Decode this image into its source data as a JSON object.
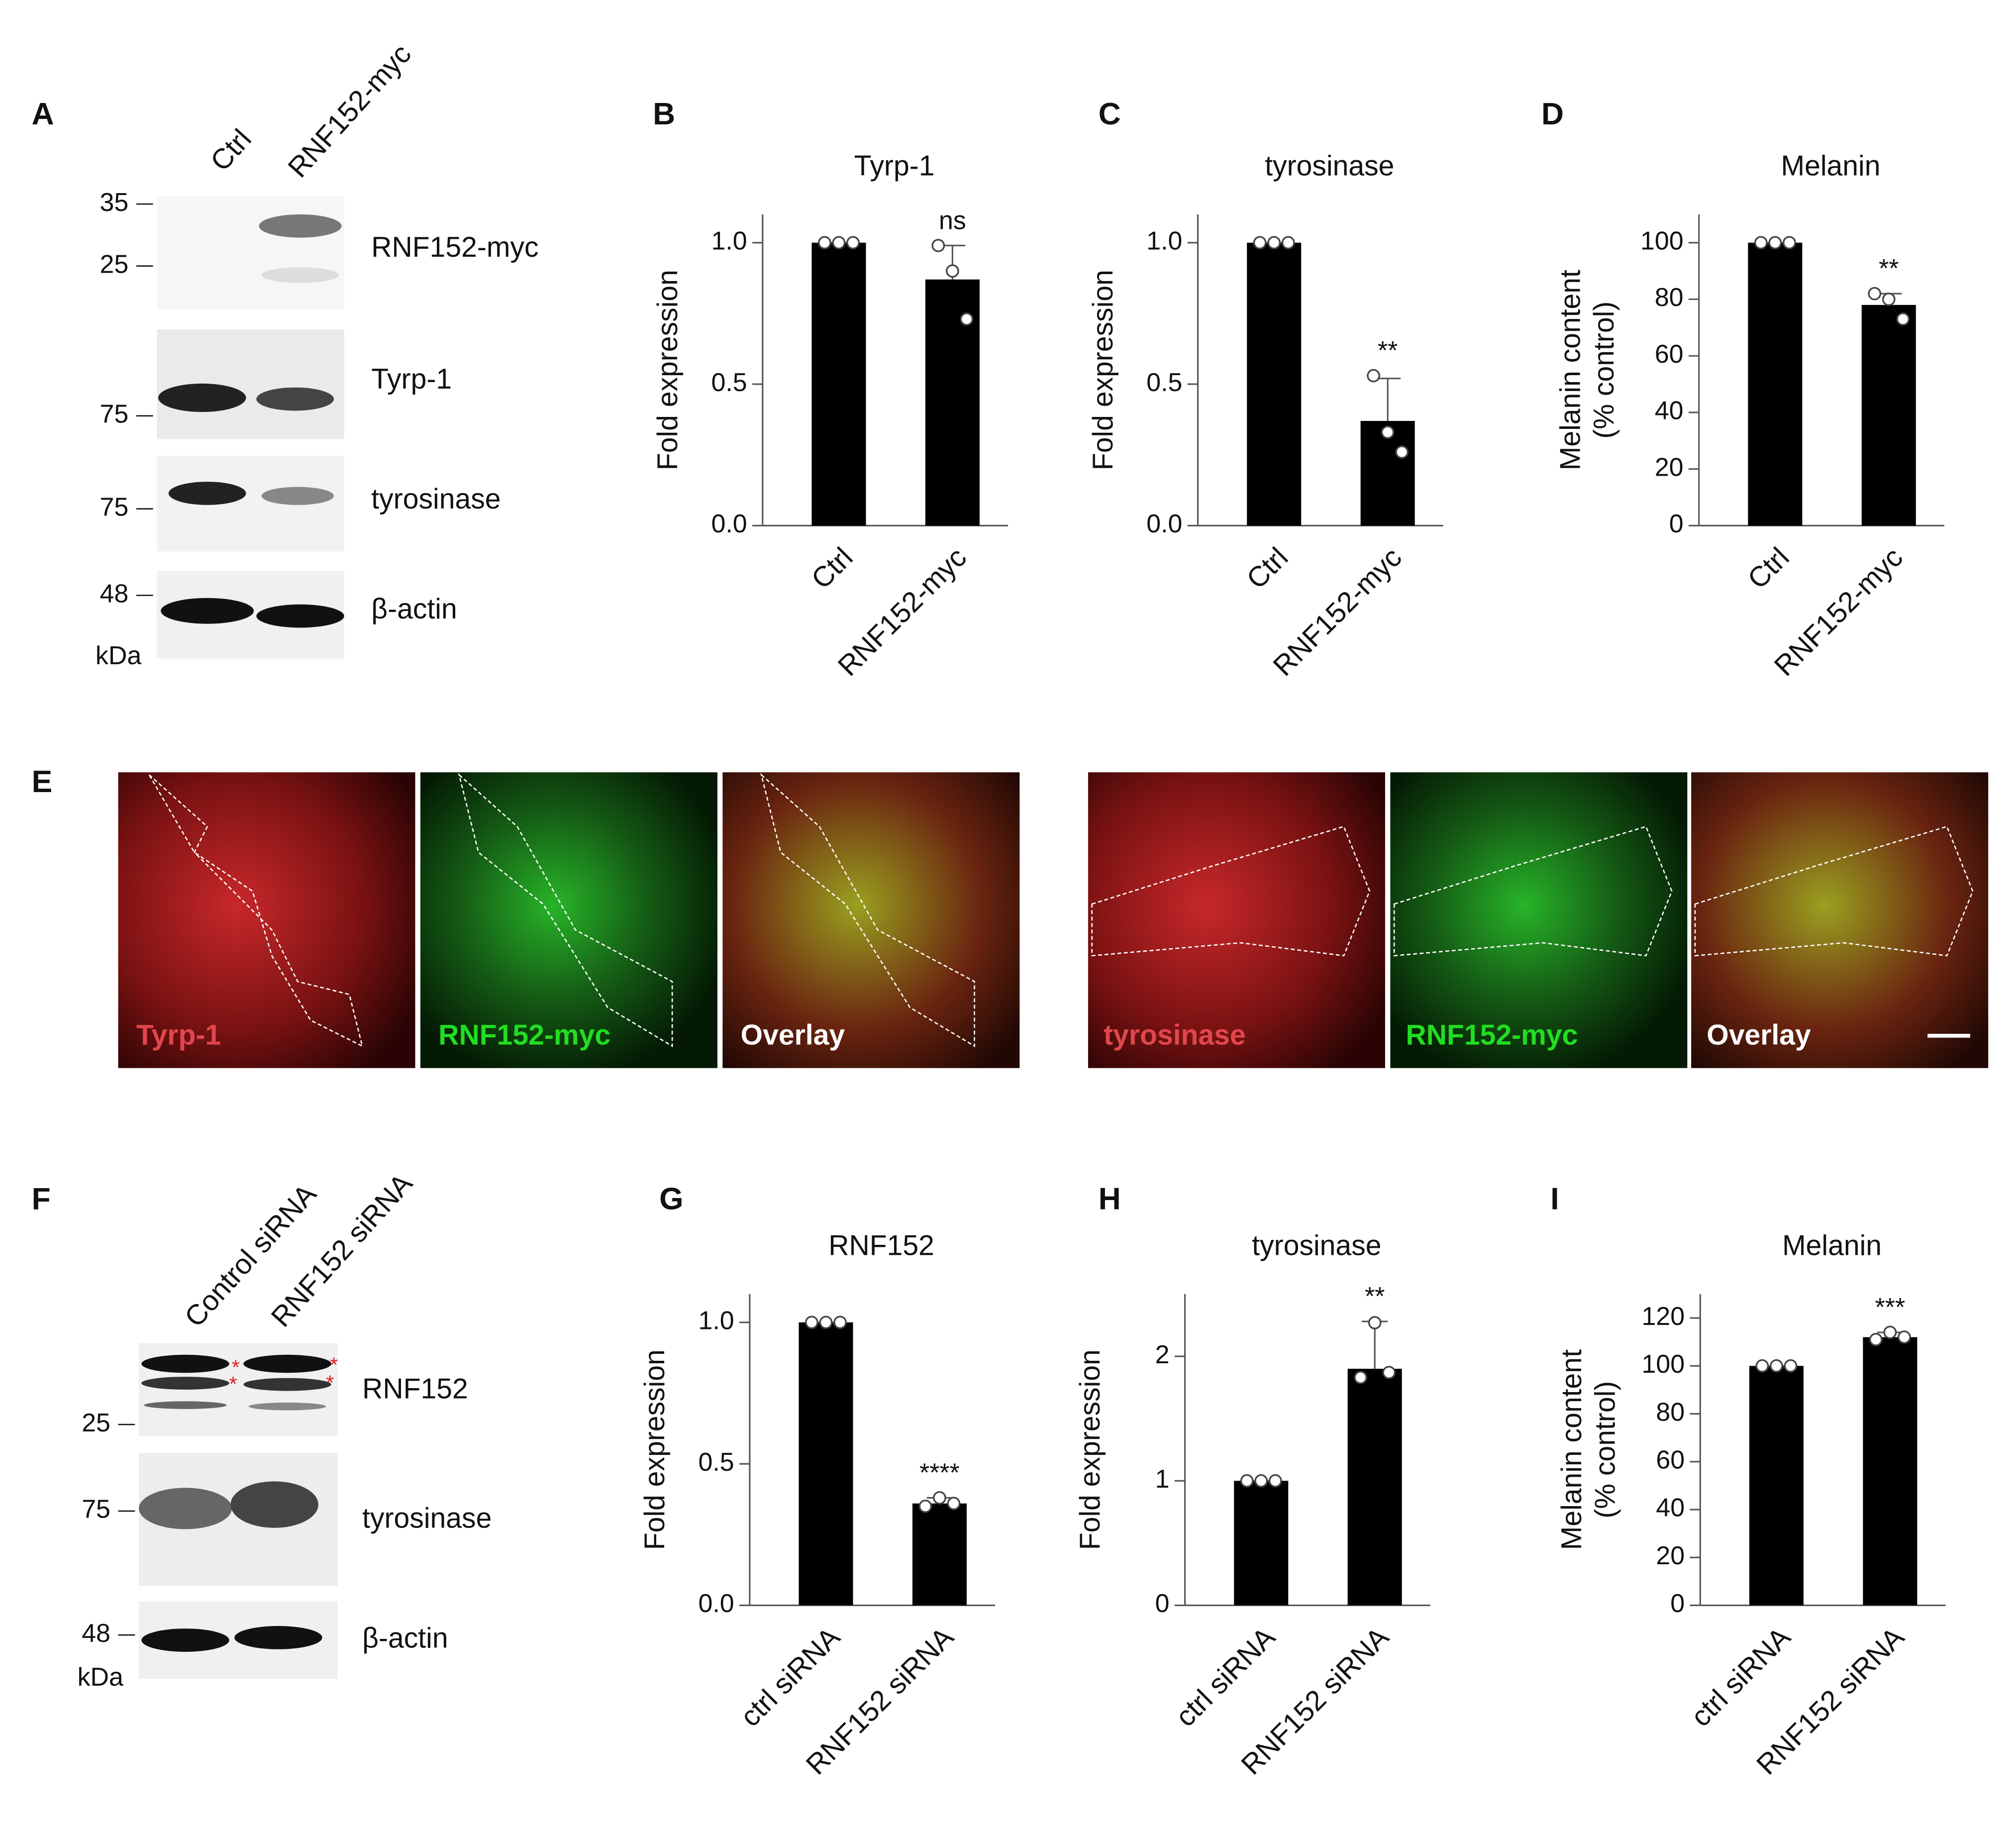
{
  "panels": {
    "A": "A",
    "B": "B",
    "C": "C",
    "D": "D",
    "E": "E",
    "F": "F",
    "G": "G",
    "H": "H",
    "I": "I"
  },
  "blot_a": {
    "lanes": [
      "Ctrl",
      "RNF152-myc"
    ],
    "rows": [
      "RNF152-myc",
      "Tyrp-1",
      "tyrosinase",
      "β-actin"
    ],
    "mw": [
      35,
      25,
      75,
      75,
      48
    ],
    "unit": "kDa"
  },
  "microscopy": {
    "left": [
      "Tyrp-1",
      "RNF152-myc",
      "Overlay"
    ],
    "right": [
      "tyrosinase",
      "RNF152-myc",
      "Overlay"
    ]
  },
  "blot_f": {
    "lanes": [
      "Control siRNA",
      "RNF152 siRNA"
    ],
    "rows": [
      "RNF152",
      "tyrosinase",
      "β-actin"
    ],
    "mw": [
      25,
      75,
      48
    ],
    "unit": "kDa",
    "asterisk": "*"
  },
  "chart_data": [
    {
      "type": "bar",
      "title": "Tyrp-1",
      "y_label": [
        "Fold expression"
      ],
      "categories": [
        "Ctrl",
        "RNF152-myc"
      ],
      "values": [
        1.0,
        0.87
      ],
      "errors": [
        0,
        0.12
      ],
      "points": [
        [
          1.0,
          1.0,
          1.0
        ],
        [
          0.99,
          0.9,
          0.73
        ]
      ],
      "annotations": [
        null,
        "ns"
      ],
      "color": "#000000",
      "ylim": [
        0,
        1.1
      ],
      "yticks": [
        {
          "value": 0,
          "label": "0.0"
        },
        {
          "value": 0.5,
          "label": "0.5"
        },
        {
          "value": 1,
          "label": "1.0"
        }
      ]
    },
    {
      "type": "bar",
      "title": "tyrosinase",
      "y_label": [
        "Fold expression"
      ],
      "categories": [
        "Ctrl",
        "RNF152-myc"
      ],
      "values": [
        1.0,
        0.37
      ],
      "errors": [
        0,
        0.15
      ],
      "points": [
        [
          1.0,
          1.0,
          1.0
        ],
        [
          0.53,
          0.33,
          0.26
        ]
      ],
      "annotations": [
        null,
        "**"
      ],
      "color": "#000000",
      "ylim": [
        0,
        1.1
      ],
      "yticks": [
        {
          "value": 0,
          "label": "0.0"
        },
        {
          "value": 0.5,
          "label": "0.5"
        },
        {
          "value": 1,
          "label": "1.0"
        }
      ]
    },
    {
      "type": "bar",
      "title": "Melanin",
      "y_label": [
        "Melanin content",
        "(% control)"
      ],
      "categories": [
        "Ctrl",
        "RNF152-myc"
      ],
      "values": [
        100,
        78
      ],
      "errors": [
        0,
        4
      ],
      "points": [
        [
          100,
          100,
          100
        ],
        [
          82,
          80,
          73
        ]
      ],
      "annotations": [
        null,
        "**"
      ],
      "color": "#000000",
      "ylim": [
        0,
        110
      ],
      "yticks": [
        0,
        20,
        40,
        60,
        80,
        100
      ]
    },
    {
      "type": "bar",
      "title": "RNF152",
      "y_label": [
        "Fold expression"
      ],
      "categories": [
        "ctrl siRNA",
        "RNF152 siRNA"
      ],
      "values": [
        1.0,
        0.36
      ],
      "errors": [
        0,
        0.02
      ],
      "points": [
        [
          1.0,
          1.0,
          1.0
        ],
        [
          0.35,
          0.38,
          0.36
        ]
      ],
      "annotations": [
        null,
        "****"
      ],
      "color": "#000000",
      "ylim": [
        0,
        1.1
      ],
      "yticks": [
        {
          "value": 0,
          "label": "0.0"
        },
        {
          "value": 0.5,
          "label": "0.5"
        },
        {
          "value": 1,
          "label": "1.0"
        }
      ]
    },
    {
      "type": "bar",
      "title": "tyrosinase",
      "y_label": [
        "Fold expression"
      ],
      "categories": [
        "ctrl siRNA",
        "RNF152 siRNA"
      ],
      "values": [
        1.0,
        1.9
      ],
      "errors": [
        0,
        0.38
      ],
      "points": [
        [
          1.0,
          1.0,
          1.0
        ],
        [
          1.83,
          2.27,
          1.87
        ]
      ],
      "annotations": [
        null,
        "**"
      ],
      "color": "#000000",
      "ylim": [
        0,
        2.5
      ],
      "yticks": [
        0,
        1,
        2
      ]
    },
    {
      "type": "bar",
      "title": "Melanin",
      "y_label": [
        "Melanin content",
        "(% control)"
      ],
      "categories": [
        "ctrl siRNA",
        "RNF152 siRNA"
      ],
      "values": [
        100,
        112
      ],
      "errors": [
        0,
        2
      ],
      "points": [
        [
          100,
          100,
          100
        ],
        [
          111,
          114,
          112
        ]
      ],
      "annotations": [
        null,
        "***"
      ],
      "color": "#000000",
      "ylim": [
        0,
        130
      ],
      "yticks": [
        0,
        20,
        40,
        60,
        80,
        100,
        120
      ]
    }
  ]
}
